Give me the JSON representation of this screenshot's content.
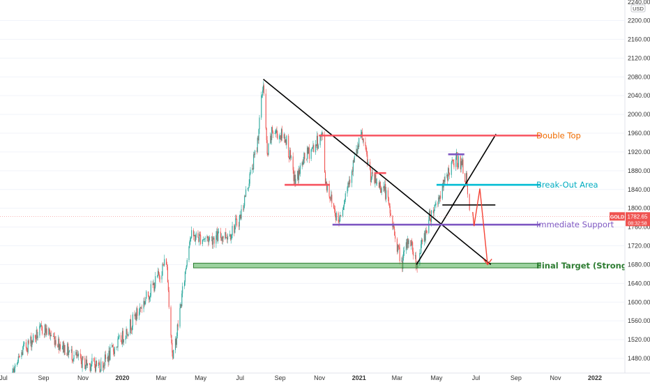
{
  "chart_data": {
    "type": "candlestick",
    "symbol": "GOLD",
    "currency_label": "USD",
    "top_clip_price": "2240.00",
    "current_price_label": "1782.65",
    "countdown_label": "08:32:58",
    "y_ticks": [
      "2200.00",
      "2160.00",
      "2120.00",
      "2080.00",
      "2040.00",
      "2000.00",
      "1960.00",
      "1920.00",
      "1880.00",
      "1840.00",
      "1800.00",
      "1760.00",
      "1720.00",
      "1680.00",
      "1640.00",
      "1600.00",
      "1560.00",
      "1520.00",
      "1480.00"
    ],
    "x_ticks": [
      {
        "label": "Jul",
        "bold": false
      },
      {
        "label": "Sep",
        "bold": false
      },
      {
        "label": "Nov",
        "bold": false
      },
      {
        "label": "2020",
        "bold": true
      },
      {
        "label": "Mar",
        "bold": false
      },
      {
        "label": "May",
        "bold": false
      },
      {
        "label": "Jul",
        "bold": false
      },
      {
        "label": "Sep",
        "bold": false
      },
      {
        "label": "Nov",
        "bold": false
      },
      {
        "label": "2021",
        "bold": true
      },
      {
        "label": "Mar",
        "bold": false
      },
      {
        "label": "May",
        "bold": false
      },
      {
        "label": "Jul",
        "bold": false
      },
      {
        "label": "Sep",
        "bold": false
      },
      {
        "label": "Nov",
        "bold": false
      },
      {
        "label": "2022",
        "bold": true
      }
    ],
    "price_path_anchors": [
      {
        "date": "2019-07-01",
        "price": 1400
      },
      {
        "date": "2019-08-01",
        "price": 1500
      },
      {
        "date": "2019-09-01",
        "price": 1545
      },
      {
        "date": "2019-10-01",
        "price": 1505
      },
      {
        "date": "2019-11-01",
        "price": 1470
      },
      {
        "date": "2019-11-30",
        "price": 1465
      },
      {
        "date": "2020-01-01",
        "price": 1525
      },
      {
        "date": "2020-01-15",
        "price": 1555
      },
      {
        "date": "2020-02-20",
        "price": 1640
      },
      {
        "date": "2020-03-09",
        "price": 1690
      },
      {
        "date": "2020-03-19",
        "price": 1475
      },
      {
        "date": "2020-04-06",
        "price": 1650
      },
      {
        "date": "2020-04-14",
        "price": 1740
      },
      {
        "date": "2020-05-15",
        "price": 1735
      },
      {
        "date": "2020-06-15",
        "price": 1745
      },
      {
        "date": "2020-07-01",
        "price": 1780
      },
      {
        "date": "2020-07-27",
        "price": 1930
      },
      {
        "date": "2020-08-06",
        "price": 2070
      },
      {
        "date": "2020-08-12",
        "price": 1910
      },
      {
        "date": "2020-08-20",
        "price": 1965
      },
      {
        "date": "2020-09-10",
        "price": 1950
      },
      {
        "date": "2020-09-24",
        "price": 1855
      },
      {
        "date": "2020-10-10",
        "price": 1910
      },
      {
        "date": "2020-11-06",
        "price": 1955
      },
      {
        "date": "2020-11-10",
        "price": 1860
      },
      {
        "date": "2020-11-30",
        "price": 1770
      },
      {
        "date": "2020-12-20",
        "price": 1880
      },
      {
        "date": "2021-01-05",
        "price": 1955
      },
      {
        "date": "2021-01-20",
        "price": 1865
      },
      {
        "date": "2021-02-10",
        "price": 1840
      },
      {
        "date": "2021-02-26",
        "price": 1740
      },
      {
        "date": "2021-03-08",
        "price": 1680
      },
      {
        "date": "2021-03-20",
        "price": 1740
      },
      {
        "date": "2021-03-31",
        "price": 1680
      },
      {
        "date": "2021-04-20",
        "price": 1780
      },
      {
        "date": "2021-05-10",
        "price": 1840
      },
      {
        "date": "2021-05-20",
        "price": 1880
      },
      {
        "date": "2021-06-01",
        "price": 1905
      },
      {
        "date": "2021-06-10",
        "price": 1890
      },
      {
        "date": "2021-06-16",
        "price": 1860
      },
      {
        "date": "2021-06-21",
        "price": 1782
      }
    ],
    "drawings": {
      "lines": [
        {
          "name": "downtrend-line",
          "color": "#000000",
          "from": {
            "date": "2020-08-06",
            "price": 2075
          },
          "to": {
            "date": "2021-07-24",
            "price": 1680
          }
        },
        {
          "name": "uptrend-line",
          "color": "#000000",
          "from": {
            "date": "2021-03-31",
            "price": 1680
          },
          "to": {
            "date": "2021-08-01",
            "price": 1958
          }
        },
        {
          "name": "breakdown-level",
          "color": "#000000",
          "from": {
            "date": "2021-05-10",
            "price": 1807
          },
          "to": {
            "date": "2021-07-31",
            "price": 1807
          }
        },
        {
          "name": "double-top-line",
          "color": "#f7525f",
          "from": {
            "date": "2020-10-31",
            "price": 1955
          },
          "to": {
            "date": "2021-10-09",
            "price": 1955
          }
        },
        {
          "name": "breakout-area-line",
          "color": "#00bcd4",
          "from": {
            "date": "2021-05-01",
            "price": 1850
          },
          "to": {
            "date": "2021-10-09",
            "price": 1850
          }
        },
        {
          "name": "immediate-support-line",
          "color": "#7e57c2",
          "from": {
            "date": "2020-11-21",
            "price": 1765
          },
          "to": {
            "date": "2021-10-09",
            "price": 1765
          }
        },
        {
          "name": "red-level-left",
          "color": "#f7525f",
          "from": {
            "date": "2020-09-08",
            "price": 1850
          },
          "to": {
            "date": "2020-11-17",
            "price": 1850
          }
        },
        {
          "name": "red-level-mid",
          "color": "#f7525f",
          "from": {
            "date": "2021-01-25",
            "price": 1875
          },
          "to": {
            "date": "2021-02-12",
            "price": 1875
          }
        },
        {
          "name": "purple-top-level",
          "color": "#7e57c2",
          "from": {
            "date": "2021-05-19",
            "price": 1915
          },
          "to": {
            "date": "2021-06-13",
            "price": 1915
          }
        }
      ],
      "zone": {
        "name": "final-target-zone",
        "color": "#4caf50",
        "from_date": "2020-04-20",
        "to_date": "2021-10-09",
        "top": 1683,
        "bottom": 1673
      },
      "projection_path": [
        {
          "date": "2021-06-26",
          "price": 1792
        },
        {
          "date": "2021-06-28",
          "price": 1762
        },
        {
          "date": "2021-07-07",
          "price": 1842
        },
        {
          "date": "2021-07-19",
          "price": 1680
        }
      ]
    },
    "annotations": [
      {
        "text": "Double Top",
        "color": "#ef6c00",
        "price": 1955
      },
      {
        "text": "Break-Out Area",
        "color": "#00acc1",
        "price": 1850
      },
      {
        "text": "Immediate Support",
        "color": "#7e57c2",
        "price": 1765
      },
      {
        "text": "Final Target (Strong Support)",
        "color": "#2e7d32",
        "price": 1678
      }
    ],
    "colors": {
      "up": "#26a69a",
      "down": "#ef5350",
      "grid": "#f0f3fa",
      "axis_text": "#333333"
    }
  }
}
